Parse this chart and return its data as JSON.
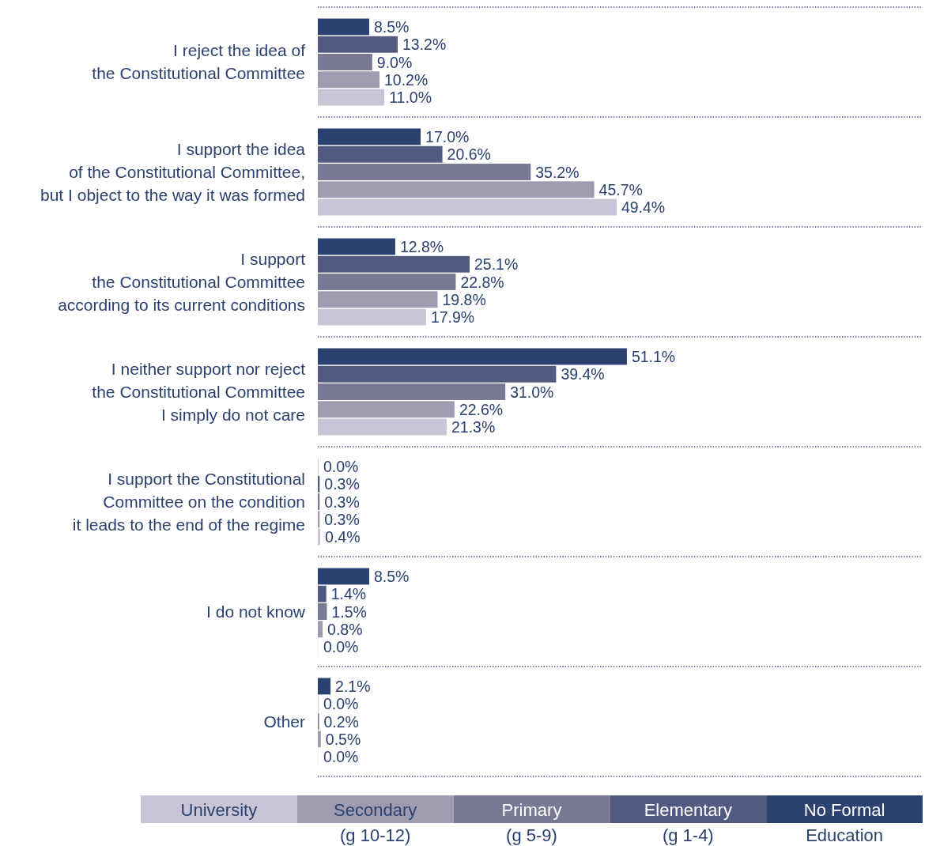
{
  "chart_data": {
    "type": "bar",
    "orientation": "horizontal",
    "categories": [
      "I reject the idea of\nthe Constitutional Committee",
      "I support the idea\nof the Constitutional Committee,\nbut I object to the way it was formed",
      "I support\nthe Constitutional Committee\naccording to its current conditions",
      "I neither support nor reject\nthe Constitutional Committee\nI simply do not care",
      "I support the Constitutional\nCommittee on the condition\nit leads to the end of the regime",
      "I do not know",
      "Other"
    ],
    "series": [
      {
        "name": "No Formal\nEducation",
        "color": "#2b4170",
        "values": [
          8.5,
          17.0,
          12.8,
          51.1,
          0.0,
          8.5,
          2.1
        ],
        "value_labels": [
          "8.5%",
          "17.0%",
          "12.8%",
          "51.1%",
          "0.0%",
          "8.5%",
          "2.1%"
        ]
      },
      {
        "name": "Elementary\n(g 1-4)",
        "color": "#535a82",
        "values": [
          13.2,
          20.6,
          25.1,
          39.4,
          0.3,
          1.4,
          0.0
        ],
        "value_labels": [
          "13.2%",
          "20.6%",
          "25.1%",
          "39.4%",
          "0.3%",
          "1.4%",
          "0.0%"
        ]
      },
      {
        "name": "Primary\n(g 5-9)",
        "color": "#797895",
        "values": [
          9.0,
          35.2,
          22.8,
          31.0,
          0.3,
          1.5,
          0.2
        ],
        "value_labels": [
          "9.0%",
          "35.2%",
          "22.8%",
          "31.0%",
          "0.3%",
          "1.5%",
          "0.2%"
        ]
      },
      {
        "name": "Secondary\n(g 10-12)",
        "color": "#9f9cb2",
        "values": [
          10.2,
          45.7,
          19.8,
          22.6,
          0.3,
          0.8,
          0.5
        ],
        "value_labels": [
          "10.2%",
          "45.7%",
          "19.8%",
          "22.6%",
          "0.3%",
          "0.8%",
          "0.5%"
        ]
      },
      {
        "name": "University",
        "color": "#c8c6d6",
        "values": [
          11.0,
          49.4,
          17.9,
          21.3,
          0.4,
          0.0,
          0.0
        ],
        "value_labels": [
          "11.0%",
          "49.4%",
          "17.9%",
          "21.3%",
          "0.4%",
          "0.0%",
          "0.0%"
        ]
      }
    ],
    "xlim": [
      0,
      100
    ],
    "grid": "y",
    "legend": "bottom"
  }
}
